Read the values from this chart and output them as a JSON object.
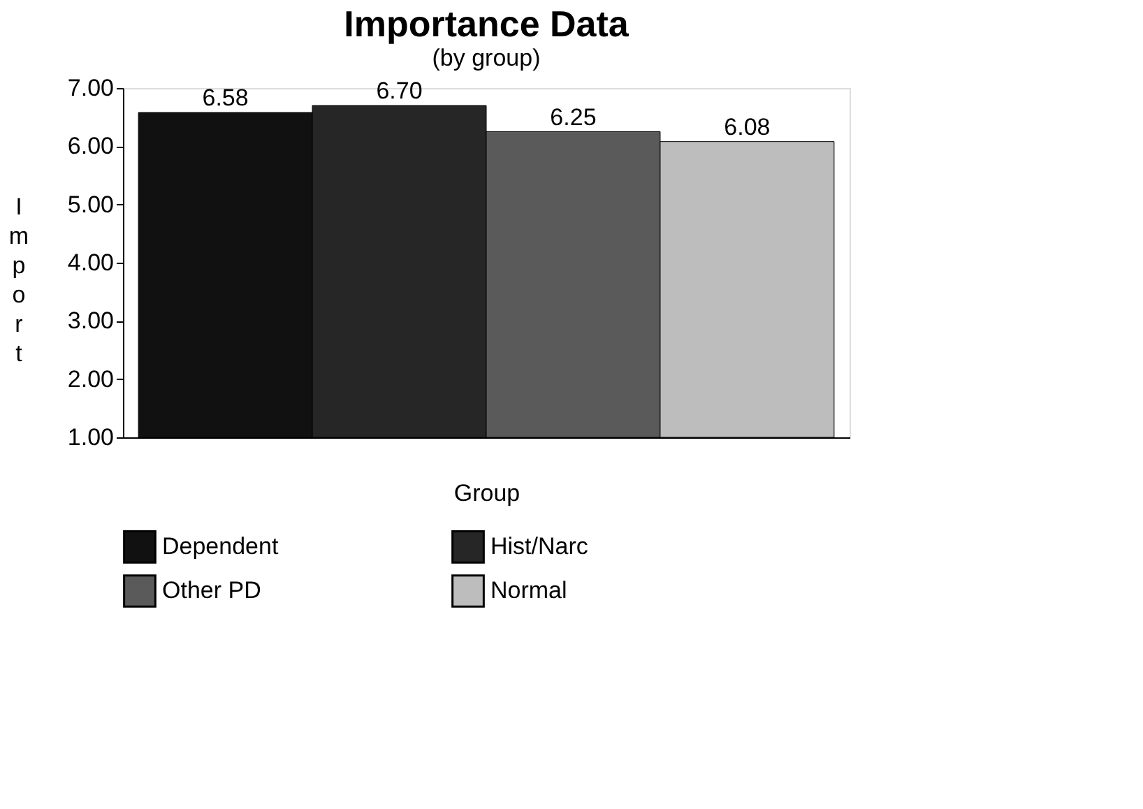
{
  "chart_data": {
    "type": "bar",
    "title": "Importance Data",
    "subtitle": "(by group)",
    "xlabel": "Group",
    "ylabel": "Import",
    "categories": [
      null
    ],
    "series": [
      {
        "name": "Dependent",
        "color": "#111111",
        "values": [
          6.58
        ],
        "value_labels": [
          "6.58"
        ]
      },
      {
        "name": "Hist/Narc",
        "color": "#262626",
        "values": [
          6.7
        ],
        "value_labels": [
          "6.70"
        ]
      },
      {
        "name": "Other PD",
        "color": "#5a5a5a",
        "values": [
          6.25
        ],
        "value_labels": [
          "6.25"
        ]
      },
      {
        "name": "Normal",
        "color": "#bdbdbd",
        "values": [
          6.08
        ],
        "value_labels": [
          "6.08"
        ]
      }
    ],
    "ylim": [
      1,
      7
    ],
    "yticks": [
      {
        "value": 1,
        "label": "1.00"
      },
      {
        "value": 2,
        "label": "2.00"
      },
      {
        "value": 3,
        "label": "3.00"
      },
      {
        "value": 4,
        "label": "4.00"
      },
      {
        "value": 5,
        "label": "5.00"
      },
      {
        "value": 6,
        "label": "6.00"
      },
      {
        "value": 7,
        "label": "7.00"
      }
    ],
    "grid": false,
    "legend": "bottom"
  }
}
